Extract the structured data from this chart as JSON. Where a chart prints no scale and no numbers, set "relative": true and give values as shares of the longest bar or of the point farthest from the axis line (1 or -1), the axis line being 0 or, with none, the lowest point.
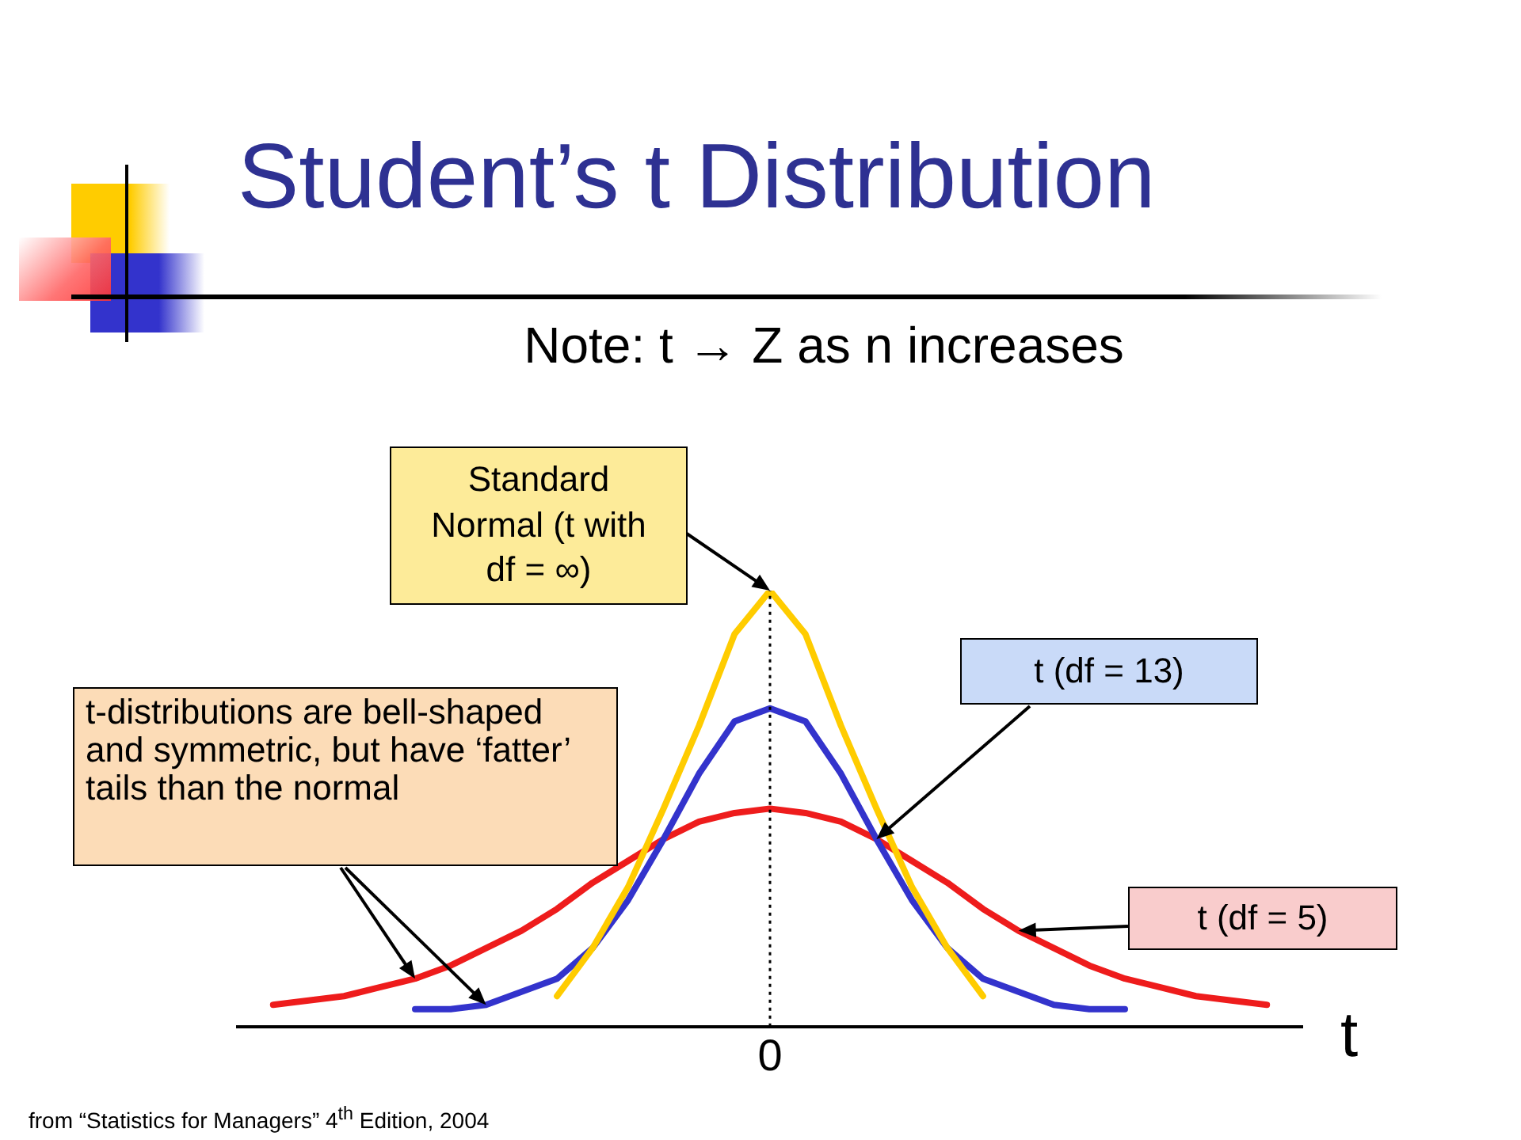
{
  "chart_data": {
    "type": "line",
    "relative": true,
    "title": "Student’s t Distribution",
    "subtitle": "Note: t → Z as n increases",
    "xlabel": "t",
    "categories": [
      null,
      null,
      null,
      null,
      null,
      null,
      null,
      null,
      null,
      null,
      null,
      null,
      null,
      null,
      null,
      null,
      null,
      null,
      null,
      null,
      null,
      null,
      null,
      null,
      null,
      null,
      null,
      null,
      null,
      null,
      null
    ],
    "series": [
      {
        "name": "Standard Normal (t with df = ∞)",
        "color": "#ffcc00",
        "values": [
          null,
          null,
          null,
          null,
          null,
          null,
          null,
          null,
          null,
          0.07,
          0.18,
          0.32,
          0.5,
          0.69,
          0.9,
          1,
          0.9,
          0.69,
          0.5,
          0.32,
          0.18,
          0.07,
          null,
          null,
          null,
          null,
          null,
          null,
          null,
          null,
          null
        ]
      },
      {
        "name": "t (df = 13)",
        "color": "#3333cc",
        "values": [
          null,
          null,
          null,
          null,
          null,
          0.04,
          0.04,
          0.05,
          0.08,
          0.11,
          0.18,
          0.29,
          0.43,
          0.58,
          0.7,
          0.73,
          0.7,
          0.58,
          0.43,
          0.29,
          0.18,
          0.11,
          0.08,
          0.05,
          0.04,
          0.04,
          null,
          null,
          null,
          null,
          null
        ]
      },
      {
        "name": "t (df = 5)",
        "color": "#ee1c1c",
        "values": [
          null,
          0.05,
          0.06,
          0.07,
          0.09,
          0.11,
          0.14,
          0.18,
          0.22,
          0.27,
          0.33,
          0.38,
          0.43,
          0.47,
          0.49,
          0.5,
          0.49,
          0.47,
          0.43,
          0.38,
          0.33,
          0.27,
          0.22,
          0.18,
          0.14,
          0.11,
          0.09,
          0.07,
          0.06,
          0.05,
          null
        ]
      }
    ],
    "ref_lines": [
      {
        "axis": "x",
        "value": "0",
        "line_style": "dotted",
        "color": "#000000"
      }
    ],
    "annotations": [
      "t-distributions are bell-shaped and symmetric, but have ‘fatter’ tails than the normal",
      "from “Statistics for Managers” 4$^{th}$ Edition, 2004"
    ],
    "legend": false
  }
}
